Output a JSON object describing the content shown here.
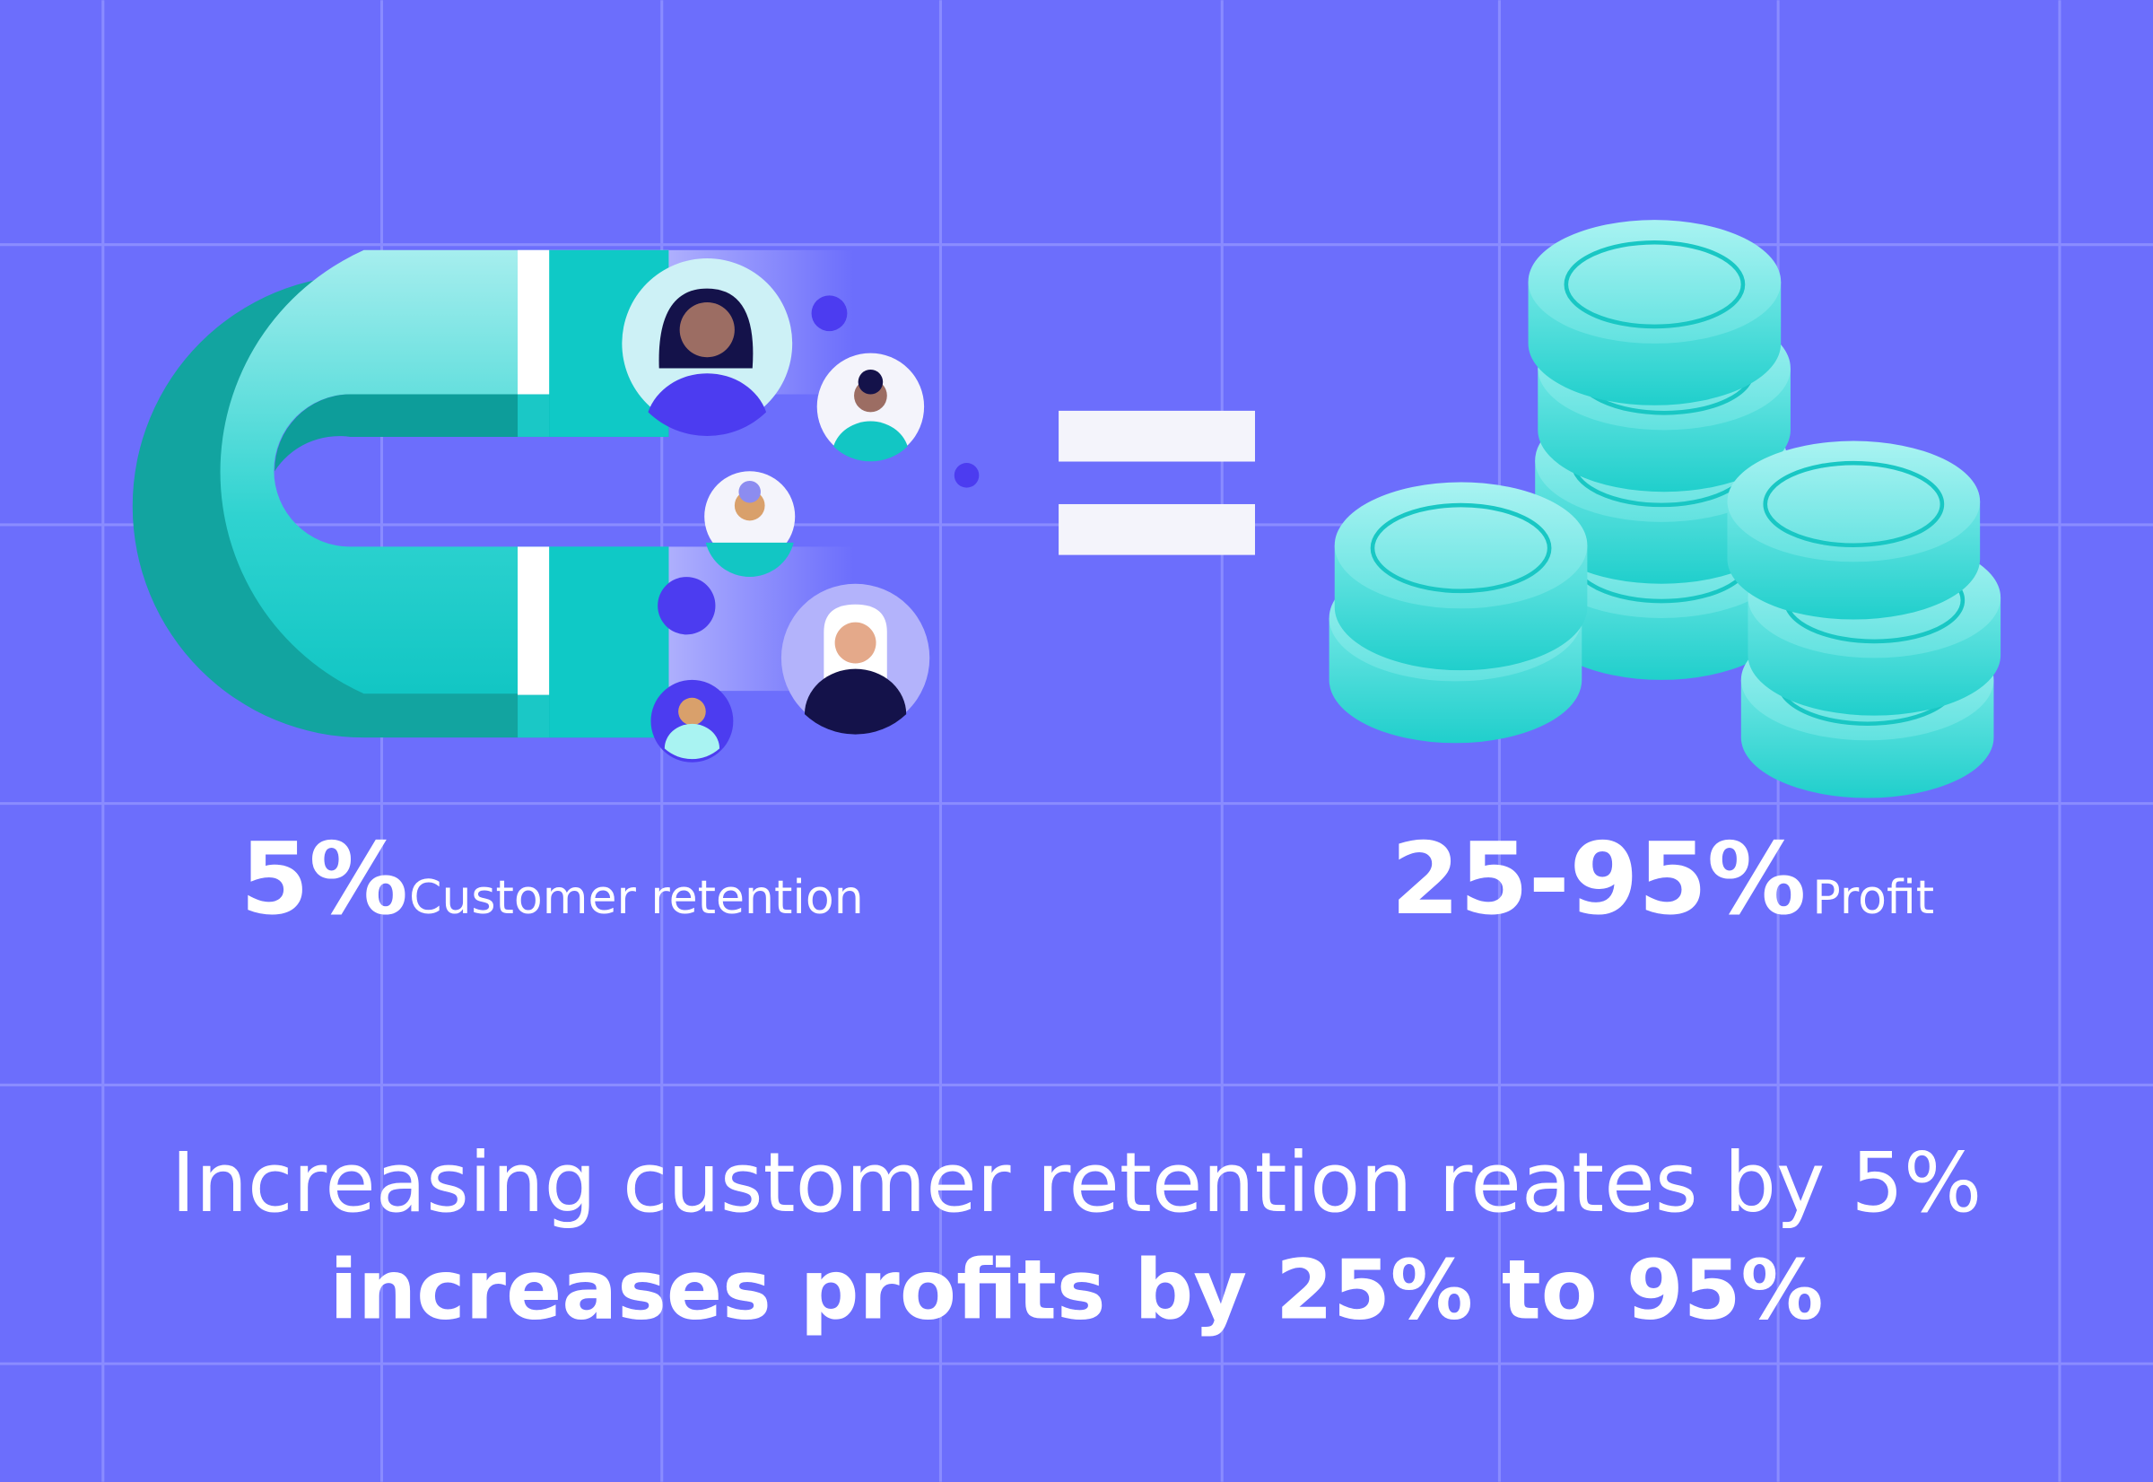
{
  "stats": [
    {
      "value": "5%",
      "label": "Customer retention"
    },
    {
      "value": "25-95%",
      "label": "Profit"
    }
  ],
  "caption": {
    "line1": "Increasing customer retention reates by 5%",
    "line2": "increases profits by 25% to 95%"
  }
}
